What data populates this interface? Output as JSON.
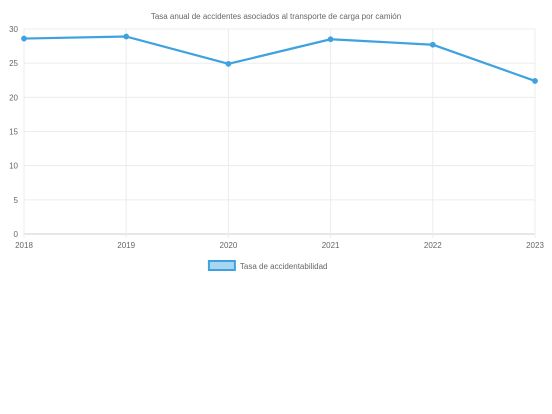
{
  "chart_data": {
    "type": "line",
    "title": "Tasa anual de accidentes asociados al transporte de carga por camión",
    "xlabel": "",
    "ylabel": "",
    "x": [
      "2018",
      "2019",
      "2020",
      "2021",
      "2022",
      "2023"
    ],
    "series": [
      {
        "name": "Tasa de accidentabilidad",
        "values": [
          28.6,
          28.9,
          24.9,
          28.5,
          27.7,
          22.4
        ],
        "color": "#3fa2e0"
      }
    ],
    "yticks": [
      "0",
      "5",
      "10",
      "15",
      "20",
      "25",
      "30"
    ],
    "ylim": [
      0,
      30
    ],
    "grid": true,
    "legend_position": "bottom"
  }
}
